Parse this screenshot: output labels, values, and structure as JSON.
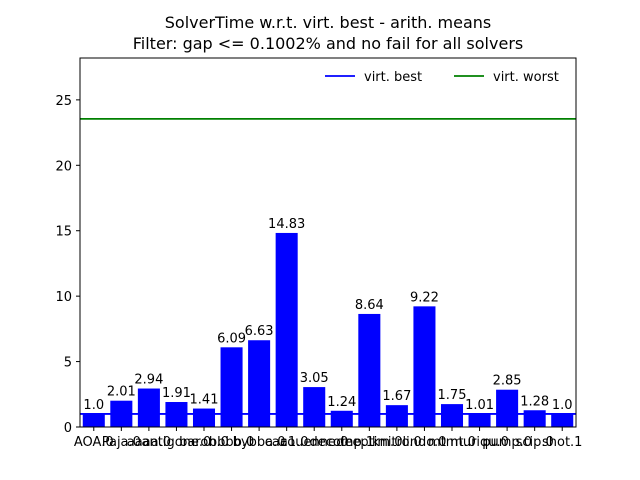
{
  "chart_data": {
    "type": "bar",
    "title": "SolverTime w.r.t. virt. best - arith. means",
    "subtitle": "Filter: gap <= 0.1002% and no fail for all solvers",
    "xlabel": "",
    "ylabel": "",
    "ylim": [
      0,
      28.2
    ],
    "yticks": [
      0,
      5,
      10,
      15,
      20,
      25
    ],
    "grid": false,
    "legend_position": "top-right",
    "bar_color": "#0000ff",
    "categories": [
      "AOA.0",
      "Paja.0",
      "aaaa.0",
      "antigone.0",
      "baron.0",
      "bbbb.0",
      "bybba.0",
      "caa1.0",
      "couenne.0",
      "decomp.1",
      "deeptim.0",
      "knitro.0",
      "lindo.0",
      "mtmt.0",
      "muriqu.0",
      "pump.0",
      "scip.0",
      "shot.1"
    ],
    "values": [
      1.0,
      2.01,
      2.94,
      1.91,
      1.41,
      6.09,
      6.63,
      14.83,
      3.05,
      1.24,
      8.64,
      1.67,
      9.22,
      1.75,
      1.01,
      2.85,
      1.28,
      1.0
    ],
    "value_labels": [
      "1.0",
      "2.01",
      "2.94",
      "1.91",
      "1.41",
      "6.09",
      "6.63",
      "14.83",
      "3.05",
      "1.24",
      "8.64",
      "1.67",
      "9.22",
      "1.75",
      "1.01",
      "2.85",
      "1.28",
      "1.0"
    ],
    "reference_lines": [
      {
        "name": "virt. best",
        "value": 1.0,
        "color": "#0000ff"
      },
      {
        "name": "virt. worst",
        "value": 23.55,
        "color": "#008000"
      }
    ]
  }
}
